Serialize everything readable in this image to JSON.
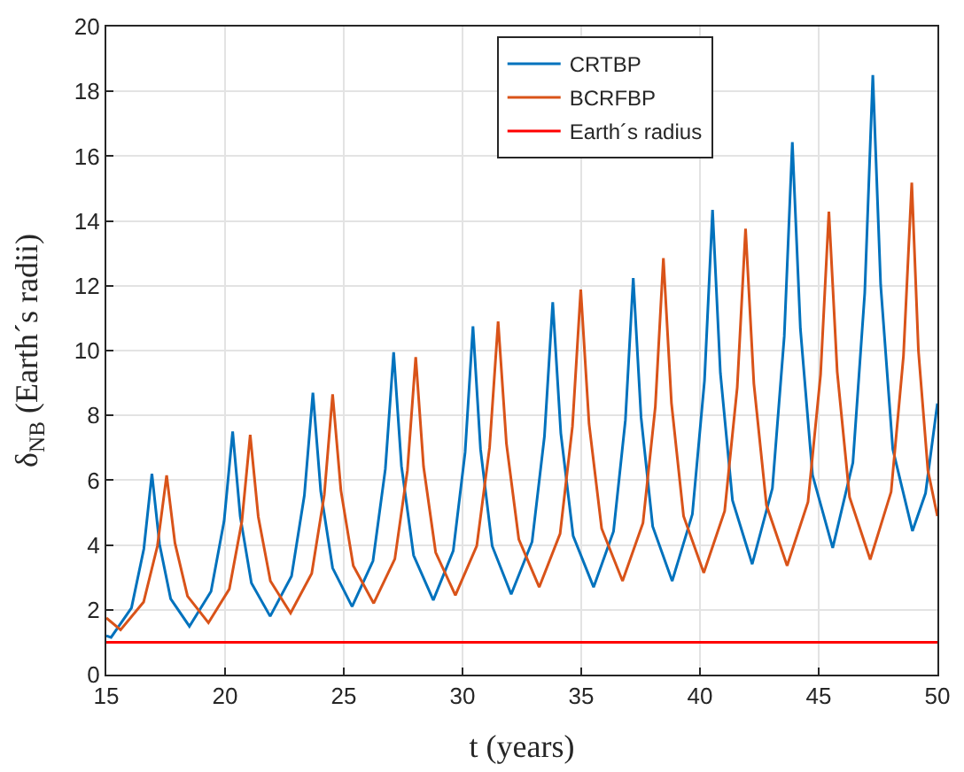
{
  "chart_data": {
    "type": "line",
    "xlabel": "t (years)",
    "ylabel": "δ$_{NB}$ (Earth´s radii)",
    "xlim": [
      15,
      50
    ],
    "ylim": [
      0,
      20
    ],
    "xticks": [
      15,
      20,
      25,
      30,
      35,
      40,
      45,
      50
    ],
    "yticks": [
      0,
      2,
      4,
      6,
      8,
      10,
      12,
      14,
      16,
      18,
      20
    ],
    "grid": true,
    "legend": "top right",
    "marker": "none",
    "line_style": "solid",
    "series": [
      {
        "name": "CRTBP",
        "color": "#0072bd",
        "x": [
          15,
          15.2,
          16.06,
          16.58,
          16.92,
          17.24,
          17.71,
          18.5,
          19.41,
          19.96,
          20.32,
          20.64,
          21.11,
          21.9,
          22.8,
          23.34,
          23.7,
          24.03,
          24.53,
          25.35,
          26.23,
          26.75,
          27.1,
          27.43,
          27.94,
          28.77,
          29.61,
          30.11,
          30.44,
          30.76,
          31.25,
          32.05,
          32.93,
          33.45,
          33.8,
          34.14,
          34.66,
          35.52,
          36.36,
          36.86,
          37.19,
          37.52,
          38.01,
          38.83,
          39.68,
          40.19,
          40.53,
          40.86,
          41.37,
          42.2,
          43.05,
          43.55,
          43.89,
          44.23,
          44.74,
          45.59,
          46.44,
          46.94,
          47.28,
          47.61,
          48.12,
          48.95,
          49.5,
          50
        ],
        "values": [
          1.2,
          1.15,
          2.06,
          3.88,
          6.2,
          4.03,
          2.34,
          1.49,
          2.57,
          4.74,
          7.5,
          4.88,
          2.83,
          1.8,
          3.04,
          5.53,
          8.7,
          5.66,
          3.29,
          2.1,
          3.51,
          6.34,
          9.95,
          6.43,
          3.68,
          2.3,
          3.82,
          6.86,
          10.75,
          6.95,
          3.97,
          2.48,
          4.1,
          7.35,
          11.49,
          7.45,
          4.28,
          2.7,
          4.42,
          7.85,
          12.24,
          7.94,
          4.57,
          2.89,
          4.95,
          9.07,
          14.34,
          9.31,
          5.38,
          3.41,
          5.75,
          10.44,
          16.43,
          10.67,
          6.16,
          3.91,
          6.54,
          11.79,
          18.5,
          12.03,
          6.96,
          4.43,
          5.6,
          8.37
        ]
      },
      {
        "name": "BCRFBP",
        "color": "#d95319",
        "x": [
          15,
          15.6,
          16.57,
          17.15,
          17.54,
          17.89,
          18.42,
          19.3,
          20.18,
          20.71,
          21.06,
          21.4,
          21.91,
          22.76,
          23.65,
          24.18,
          24.53,
          24.88,
          25.4,
          26.26,
          27.15,
          27.68,
          28.03,
          28.36,
          28.87,
          29.7,
          30.6,
          31.14,
          31.5,
          31.85,
          32.37,
          33.23,
          34.11,
          34.63,
          34.98,
          35.33,
          35.86,
          36.74,
          37.6,
          38.12,
          38.46,
          38.8,
          39.31,
          40.16,
          41.04,
          41.57,
          41.92,
          42.27,
          42.8,
          43.67,
          44.55,
          45.08,
          45.43,
          45.78,
          46.3,
          47.17,
          48.05,
          48.57,
          48.92,
          49.2,
          49.6,
          50
        ],
        "values": [
          1.75,
          1.38,
          2.24,
          3.96,
          6.15,
          4.06,
          2.42,
          1.6,
          2.64,
          4.73,
          7.4,
          4.87,
          2.89,
          1.9,
          3.12,
          5.55,
          8.65,
          5.68,
          3.36,
          2.2,
          3.57,
          6.3,
          9.8,
          6.42,
          3.77,
          2.45,
          3.97,
          7.01,
          10.9,
          7.13,
          4.18,
          2.7,
          4.35,
          7.66,
          11.88,
          7.74,
          4.51,
          2.89,
          4.68,
          8.27,
          12.85,
          8.38,
          4.89,
          3.14,
          5.05,
          8.87,
          13.76,
          8.98,
          5.23,
          3.36,
          5.33,
          9.26,
          14.29,
          9.35,
          5.48,
          3.55,
          5.64,
          9.83,
          15.18,
          10.0,
          6.3,
          4.89
        ]
      },
      {
        "name": "Earth´s radius",
        "color": "#ff0000",
        "x": [
          15,
          50
        ],
        "values": [
          1,
          1
        ]
      }
    ]
  }
}
